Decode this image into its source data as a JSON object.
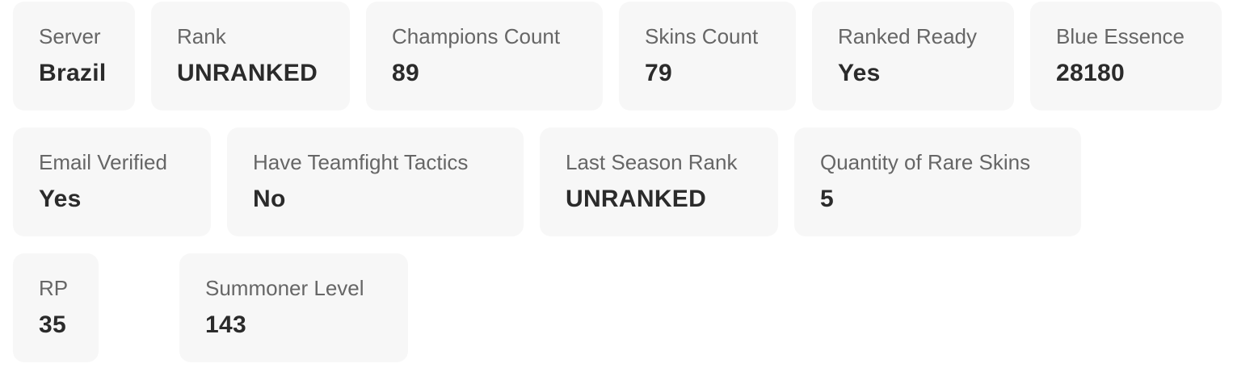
{
  "stats": [
    {
      "label": "Server",
      "value": "Brazil"
    },
    {
      "label": "Rank",
      "value": "UNRANKED"
    },
    {
      "label": "Champions Count",
      "value": "89"
    },
    {
      "label": "Skins Count",
      "value": "79"
    },
    {
      "label": "Ranked Ready",
      "value": "Yes"
    },
    {
      "label": "Blue Essence",
      "value": "28180"
    },
    {
      "label": "Email Verified",
      "value": "Yes"
    },
    {
      "label": "Have Teamfight Tactics",
      "value": "No"
    },
    {
      "label": "Last Season Rank",
      "value": "UNRANKED"
    },
    {
      "label": "Quantity of Rare Skins",
      "value": "5"
    },
    {
      "label": "RP",
      "value": "35"
    },
    {
      "label": "Summoner Level",
      "value": "143"
    }
  ]
}
